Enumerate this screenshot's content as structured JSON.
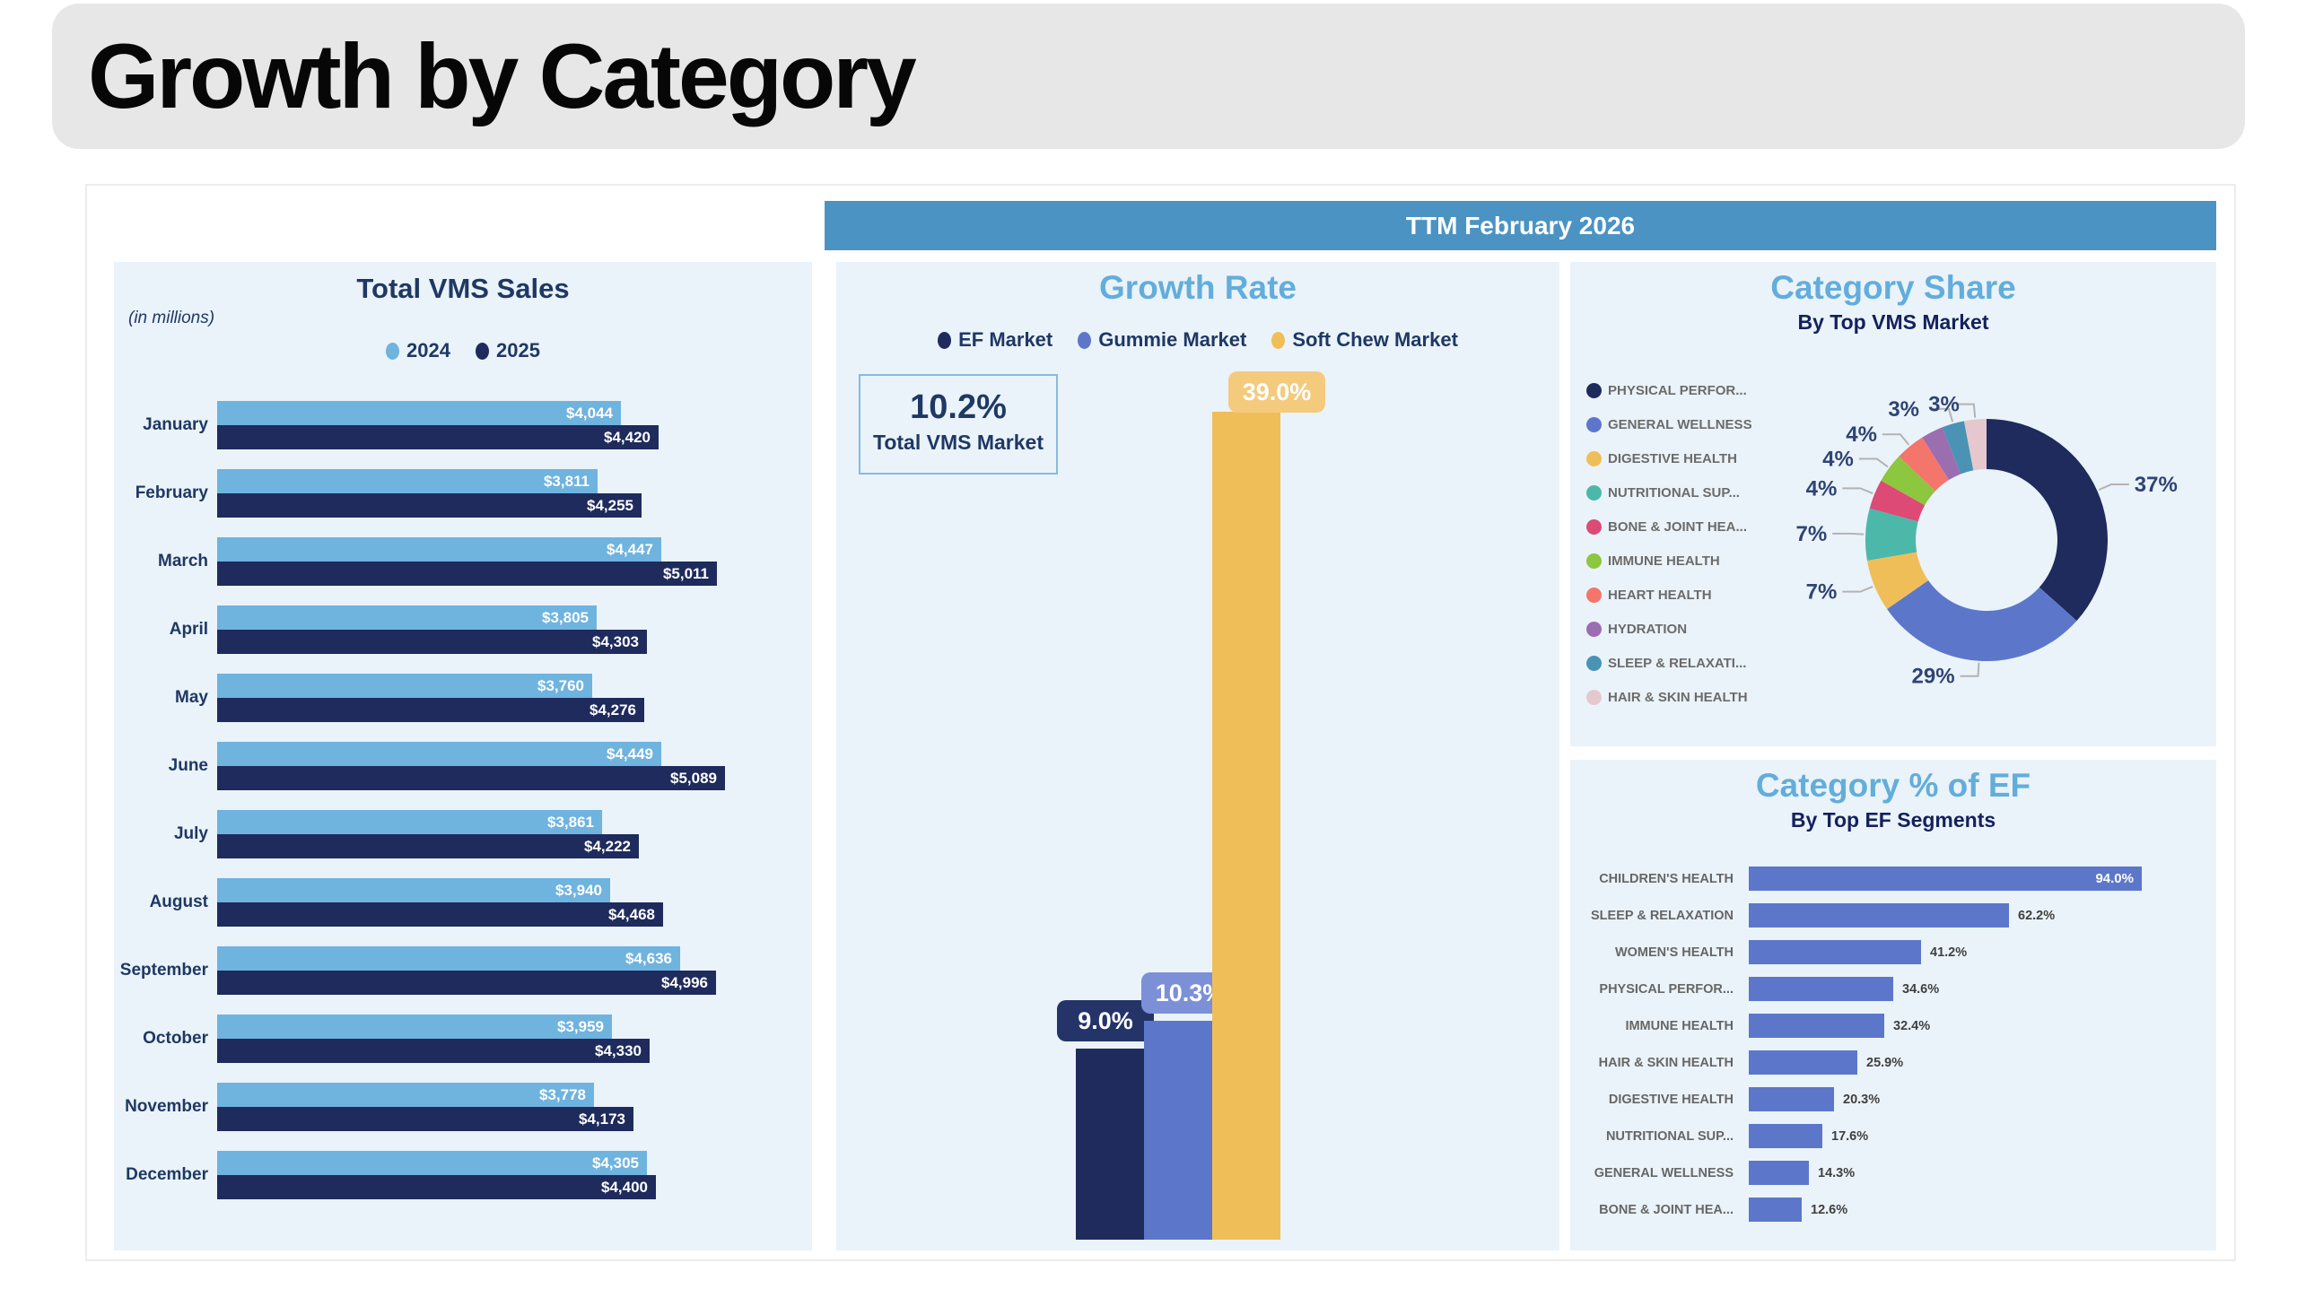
{
  "header": {
    "title": "Growth by Category"
  },
  "ttm_label": "TTM February 2026",
  "theme": {
    "panel_bg": "#EAF3FA",
    "band_bg": "#4B93C3",
    "section_title_blue": "#63ADDB",
    "navy_text": "#1F3864",
    "legend_gray": "#6B6B6B"
  },
  "chart_data": [
    {
      "id": "total_vms_sales",
      "type": "bar",
      "orientation": "horizontal",
      "title": "Total VMS Sales",
      "note": "(in millions)",
      "categories": [
        "January",
        "February",
        "March",
        "April",
        "May",
        "June",
        "July",
        "August",
        "September",
        "October",
        "November",
        "December"
      ],
      "series": [
        {
          "name": "2024",
          "color": "#6FB3DF",
          "values": [
            4044,
            3811,
            4447,
            3805,
            3760,
            4449,
            3861,
            3940,
            4636,
            3959,
            3778,
            4305
          ],
          "labels": [
            "$4,044",
            "$3,811",
            "$4,447",
            "$3,805",
            "$3,760",
            "$4,449",
            "$3,861",
            "$3,940",
            "$4,636",
            "$3,959",
            "$3,778",
            "$4,305"
          ]
        },
        {
          "name": "2025",
          "color": "#1E2B5C",
          "values": [
            4420,
            4255,
            5011,
            4303,
            4276,
            5089,
            4222,
            4468,
            4996,
            4330,
            4173,
            4400
          ],
          "labels": [
            "$4,420",
            "$4,255",
            "$5,011",
            "$4,303",
            "$4,276",
            "$5,089",
            "$4,222",
            "$4,468",
            "$4,996",
            "$4,330",
            "$4,173",
            "$4,400"
          ]
        }
      ],
      "xmax": 5089,
      "legend_position": "top"
    },
    {
      "id": "growth_rate",
      "type": "column",
      "title": "Growth Rate",
      "categories": [
        "EF Market",
        "Gummie Market",
        "Soft Chew Market"
      ],
      "values": [
        9.0,
        10.3,
        39.0
      ],
      "labels": [
        "9.0%",
        "10.3%",
        "39.0%"
      ],
      "colors": [
        "#1E2B5C",
        "#5C77CA",
        "#F0BE59"
      ],
      "pill_colors": [
        "#243469",
        "#7C90D8",
        "#F4CA7C"
      ],
      "callout": {
        "value": "10.2%",
        "label": "Total VMS Market"
      },
      "ylim": [
        0,
        40
      ],
      "legend_position": "top"
    },
    {
      "id": "category_share",
      "type": "donut",
      "title": "Category Share",
      "subtitle": "By Top VMS Market",
      "slices": [
        {
          "name": "PHYSICAL PERFOR...",
          "value": 37,
          "label": "37%",
          "color": "#1E2B5C"
        },
        {
          "name": "GENERAL WELLNESS",
          "value": 29,
          "label": "29%",
          "color": "#5C77CA"
        },
        {
          "name": "DIGESTIVE HEALTH",
          "value": 7,
          "label": "7%",
          "color": "#F0BE59"
        },
        {
          "name": "NUTRITIONAL SUP...",
          "value": 7,
          "label": "7%",
          "color": "#4CB8A9"
        },
        {
          "name": "BONE & JOINT HEA...",
          "value": 4,
          "label": "4%",
          "color": "#DD4A76"
        },
        {
          "name": "IMMUNE HEALTH",
          "value": 4,
          "label": "4%",
          "color": "#8DC63F"
        },
        {
          "name": "HEART HEALTH",
          "value": 4,
          "label": "4%",
          "color": "#F4756B"
        },
        {
          "name": "HYDRATION",
          "value": 3,
          "label": "",
          "color": "#9B6EB0"
        },
        {
          "name": "SLEEP & RELAXATI...",
          "value": 3,
          "label": "3%",
          "color": "#4A93B4"
        },
        {
          "name": "HAIR & SKIN HEALTH",
          "value": 3,
          "label": "3%",
          "color": "#E5C8CD"
        }
      ],
      "legend_position": "left"
    },
    {
      "id": "category_pct_of_ef",
      "type": "bar",
      "orientation": "horizontal",
      "title": "Category % of EF",
      "subtitle": "By Top EF Segments",
      "bar_color": "#5C77CA",
      "categories": [
        "CHILDREN'S HEALTH",
        "SLEEP & RELAXATION",
        "WOMEN'S HEALTH",
        "PHYSICAL PERFOR...",
        "IMMUNE HEALTH",
        "HAIR & SKIN HEALTH",
        "DIGESTIVE HEALTH",
        "NUTRITIONAL SUP...",
        "GENERAL WELLNESS",
        "BONE & JOINT HEA..."
      ],
      "values": [
        94.0,
        62.2,
        41.2,
        34.6,
        32.4,
        25.9,
        20.3,
        17.6,
        14.3,
        12.6
      ],
      "labels": [
        "94.0%",
        "62.2%",
        "41.2%",
        "34.6%",
        "32.4%",
        "25.9%",
        "20.3%",
        "17.6%",
        "14.3%",
        "12.6%"
      ],
      "xlim": [
        0,
        100
      ]
    }
  ]
}
